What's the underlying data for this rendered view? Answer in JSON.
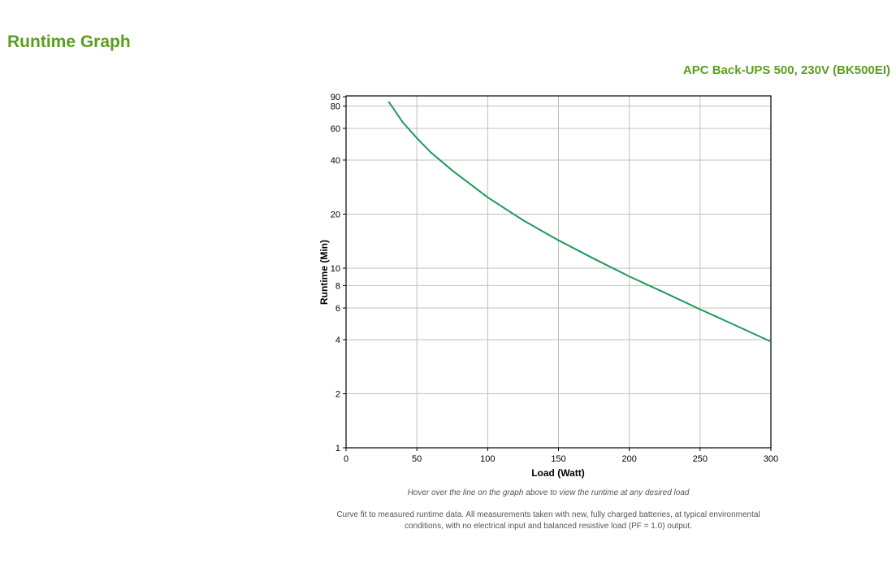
{
  "header": {
    "title": "Runtime Graph",
    "product": "APC Back-UPS 500, 230V (BK500EI)"
  },
  "colors": {
    "title_green": "#5a9e1e",
    "line_green": "#1e9a5a",
    "grid": "#c0c0c0"
  },
  "notes": {
    "hover": "Hover over the line on the graph above to view the runtime at any desired load",
    "footnote": "Curve fit to measured runtime data. All measurements taken with new, fully charged batteries, at typical environmental conditions, with no electrical input and balanced resistive load (PF = 1.0) output."
  },
  "chart_data": {
    "type": "line",
    "title": "",
    "xlabel": "Load (Watt)",
    "ylabel": "Runtime (Min)",
    "xlim": [
      0,
      300
    ],
    "ylim": [
      1,
      90
    ],
    "yscale": "log",
    "grid": true,
    "legend": "none",
    "x_ticks": [
      0,
      50,
      100,
      150,
      200,
      250,
      300
    ],
    "y_ticks": [
      1,
      2,
      4,
      6,
      8,
      10,
      20,
      40,
      60,
      80,
      90
    ],
    "series": [
      {
        "name": "Runtime",
        "x": [
          30,
          40,
          50,
          60,
          75,
          100,
          125,
          150,
          175,
          200,
          225,
          250,
          275,
          300
        ],
        "values": [
          84.7,
          65,
          53,
          44,
          35,
          24.8,
          18.5,
          14.3,
          11.3,
          9.0,
          7.3,
          5.9,
          4.8,
          3.9
        ]
      }
    ]
  }
}
